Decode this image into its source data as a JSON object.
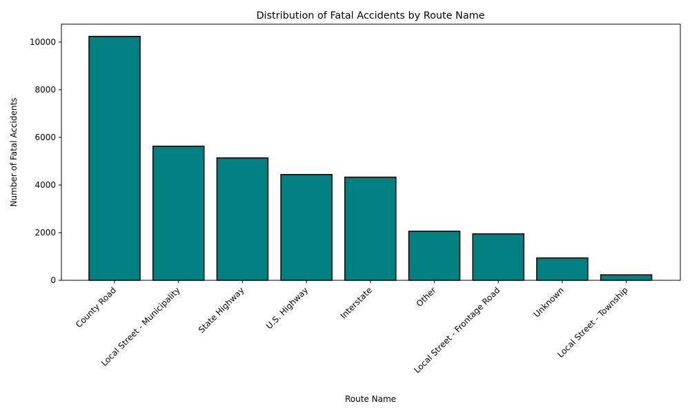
{
  "chart_data": {
    "type": "bar",
    "title": "Distribution of Fatal Accidents by Route Name",
    "xlabel": "Route Name",
    "ylabel": "Number of Fatal Accidents",
    "categories": [
      "County Road",
      "Local Street - Municipality",
      "State Highway",
      "U.S. Highway",
      "Interstate",
      "Other",
      "Local Street - Frontage Road",
      "Unknown",
      "Local Street - Township"
    ],
    "values": [
      10240,
      5630,
      5140,
      4440,
      4330,
      2060,
      1950,
      940,
      230
    ],
    "yticks": [
      0,
      2000,
      4000,
      6000,
      8000,
      10000
    ],
    "ylim": [
      0,
      10752
    ],
    "grid": false,
    "legend": "none",
    "bar_color": "#008080",
    "edge_color": "#000000"
  }
}
